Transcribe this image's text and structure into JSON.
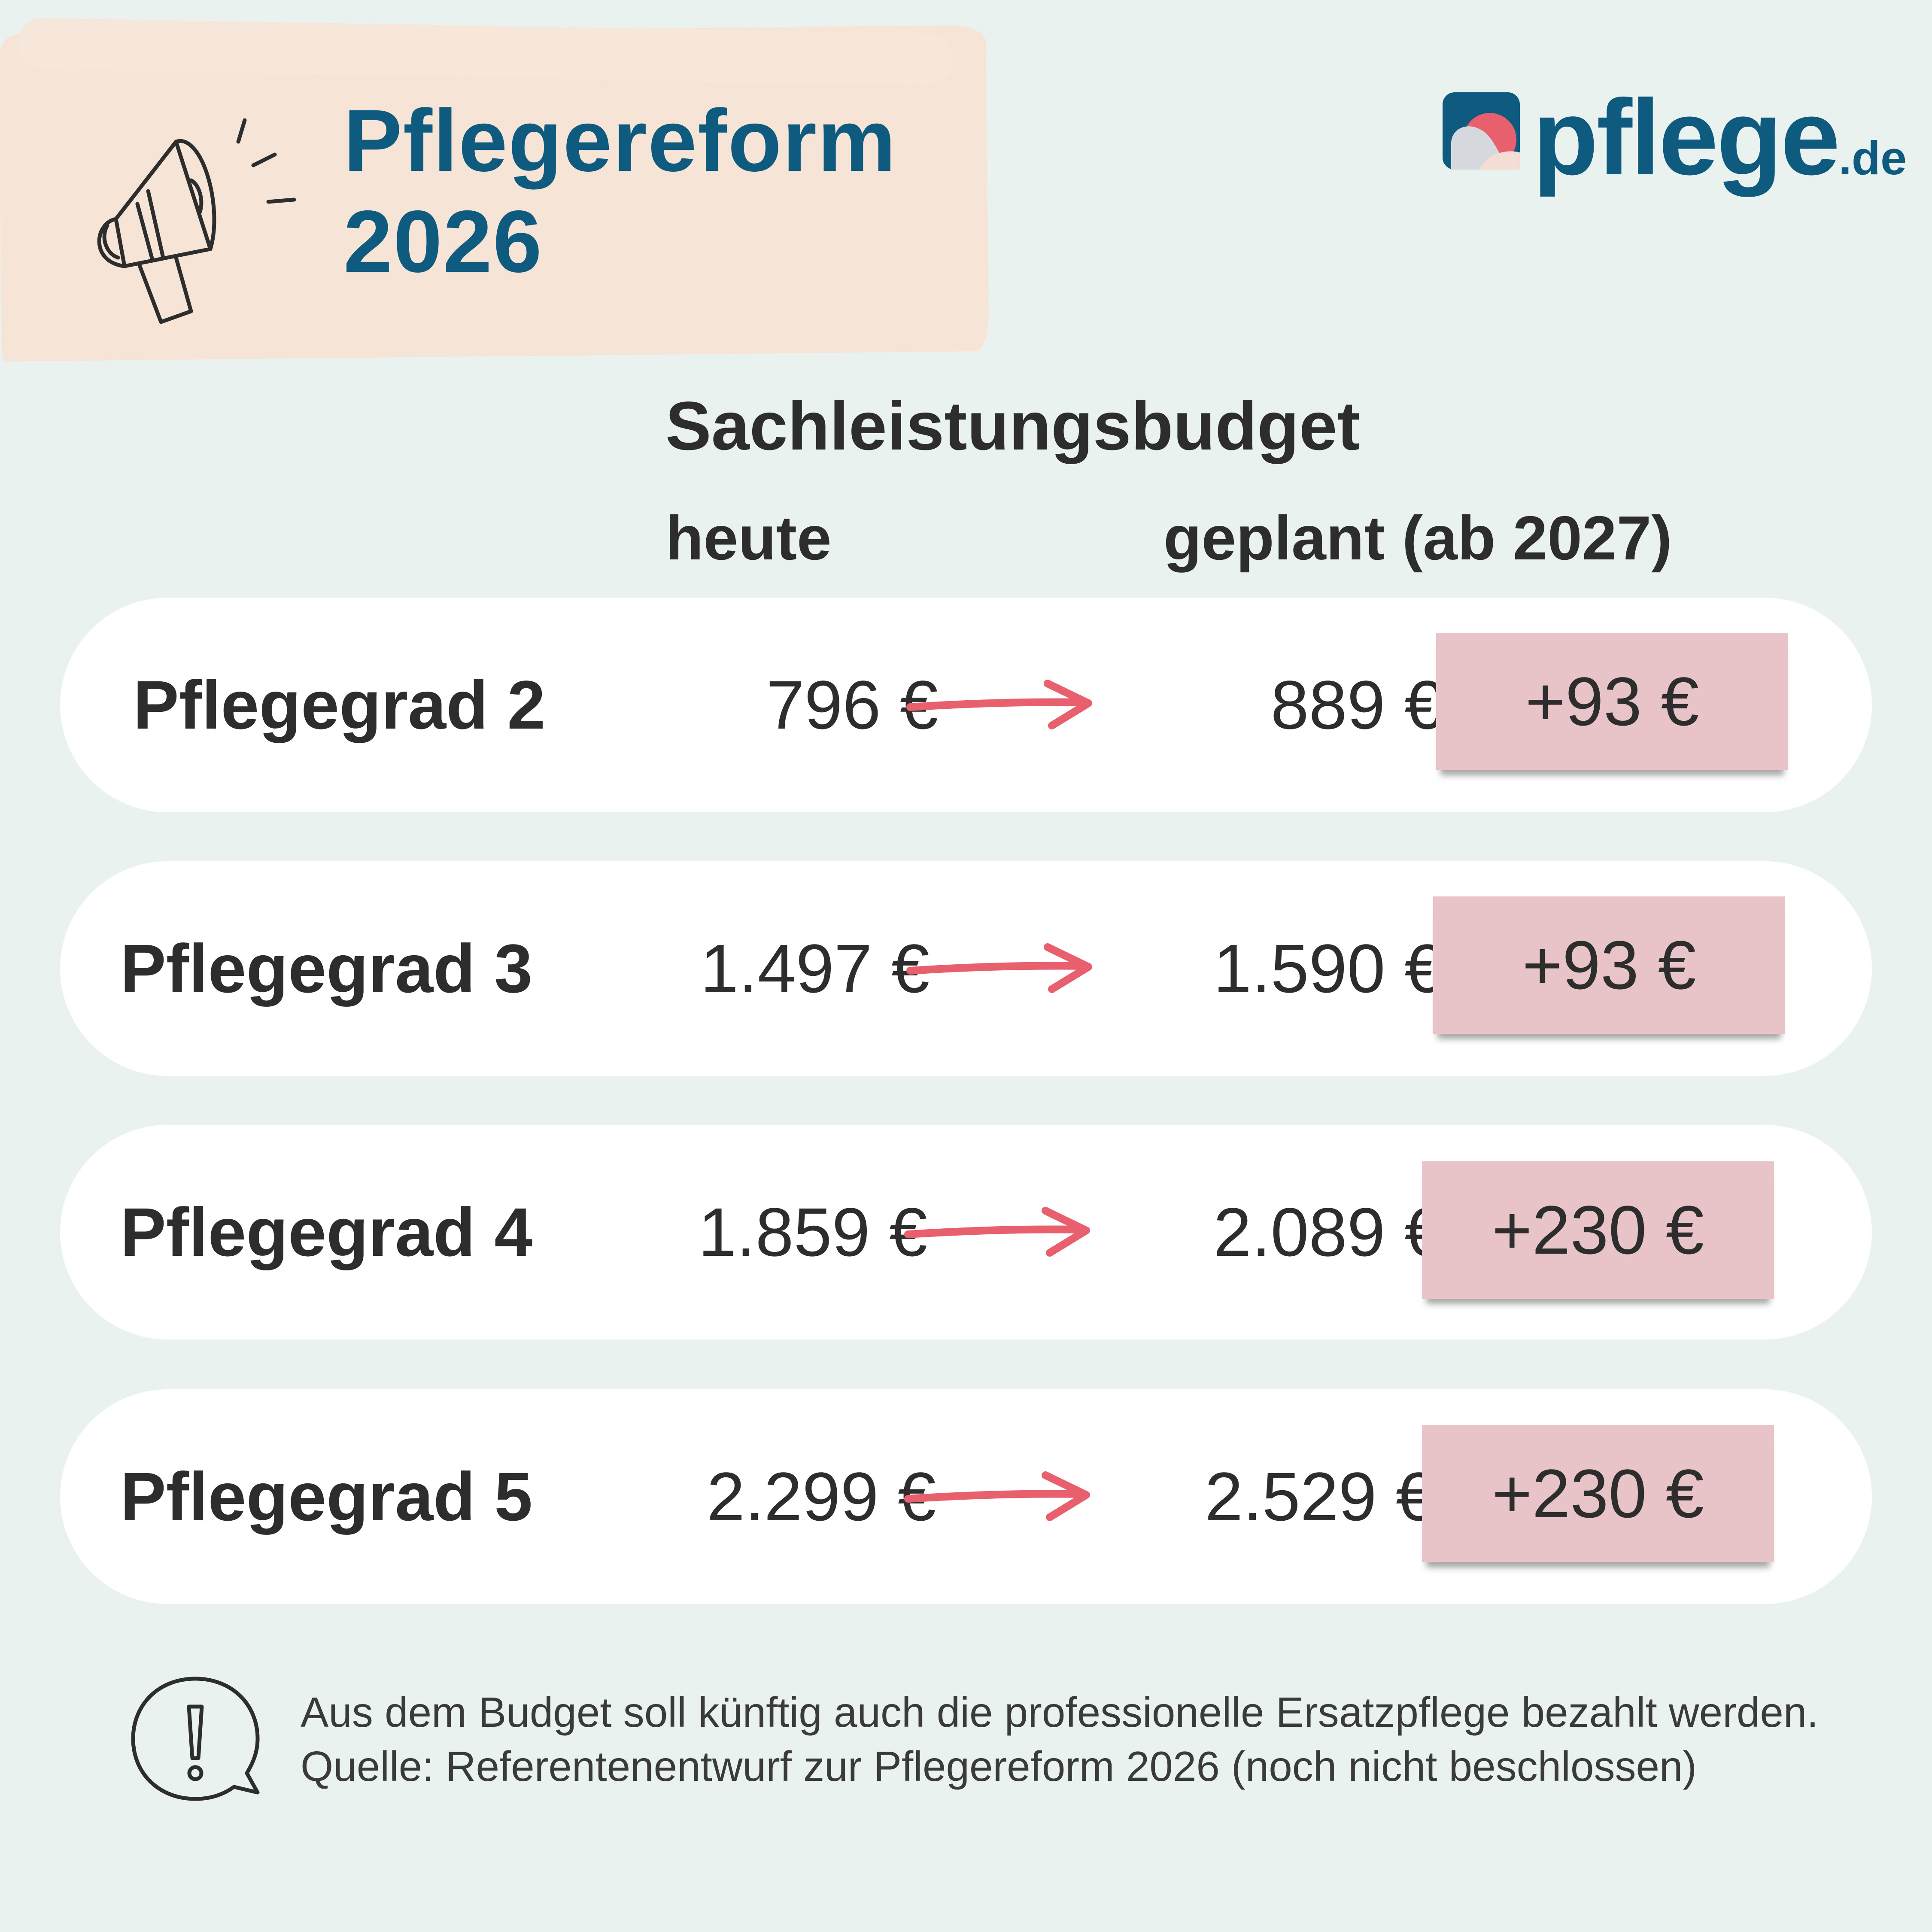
{
  "header": {
    "title_line1": "Pflegereform",
    "title_line2": "2026"
  },
  "logo": {
    "name": "pflege",
    "tld": ".de"
  },
  "table": {
    "heading": "Sachleistungsbudget",
    "col_today": "heute",
    "col_planned": "geplant (ab 2027)",
    "rows": [
      {
        "grade": "Pflegegrad 2",
        "today": "796 €",
        "planned": "889 €",
        "delta": "+93 €"
      },
      {
        "grade": "Pflegegrad 3",
        "today": "1.497 €",
        "planned": "1.590 €",
        "delta": "+93 €"
      },
      {
        "grade": "Pflegegrad 4",
        "today": "1.859 €",
        "planned": "2.089 €",
        "delta": "+230 €"
      },
      {
        "grade": "Pflegegrad 5",
        "today": "2.299 €",
        "planned": "2.529 €",
        "delta": "+230 €"
      }
    ]
  },
  "footnote": {
    "text": "Aus dem Budget soll künftig auch die professionelle Ersatzpflege bezahlt werden. Quelle: Referentenentwurf zur Pflegereform 2026 (noch nicht beschlossen)"
  },
  "colors": {
    "brand_blue": "#0f5a7f",
    "background": "#eaf2f0",
    "header_brush": "#f6e4d6",
    "delta_box": "#e8c4c8",
    "arrow": "#e8606e"
  },
  "icons": {
    "header": "megaphone-icon",
    "footnote": "exclamation-speech-bubble-icon"
  }
}
